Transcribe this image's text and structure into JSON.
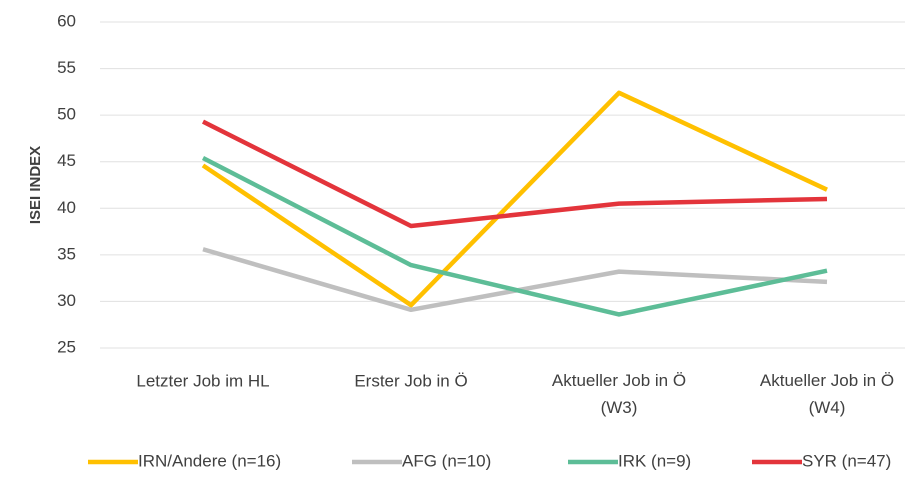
{
  "chart_data": {
    "type": "line",
    "y_label": "ISEI INDEX",
    "categories": [
      "Letzter Job im HL",
      "Erster Job in Ö",
      "Aktueller Job in Ö (W3)",
      "Aktueller Job in Ö (W4)"
    ],
    "series": [
      {
        "name": "IRN/Andere (n=16)",
        "color": "#ffc000",
        "values": [
          44.6,
          29.6,
          52.4,
          42.0
        ]
      },
      {
        "name": "AFG (n=10)",
        "color": "#bfbfbf",
        "values": [
          35.6,
          29.1,
          33.2,
          32.1
        ]
      },
      {
        "name": "IRK (n=9)",
        "color": "#5dbd97",
        "values": [
          45.4,
          33.9,
          28.6,
          33.3
        ]
      },
      {
        "name": "SYR (n=47)",
        "color": "#e3343b",
        "values": [
          49.3,
          38.1,
          40.5,
          41.0
        ]
      }
    ],
    "ylim": [
      25,
      60
    ],
    "yticks": [
      25,
      30,
      35,
      40,
      45,
      50,
      55,
      60
    ],
    "grid": true,
    "legend": "bottom"
  }
}
